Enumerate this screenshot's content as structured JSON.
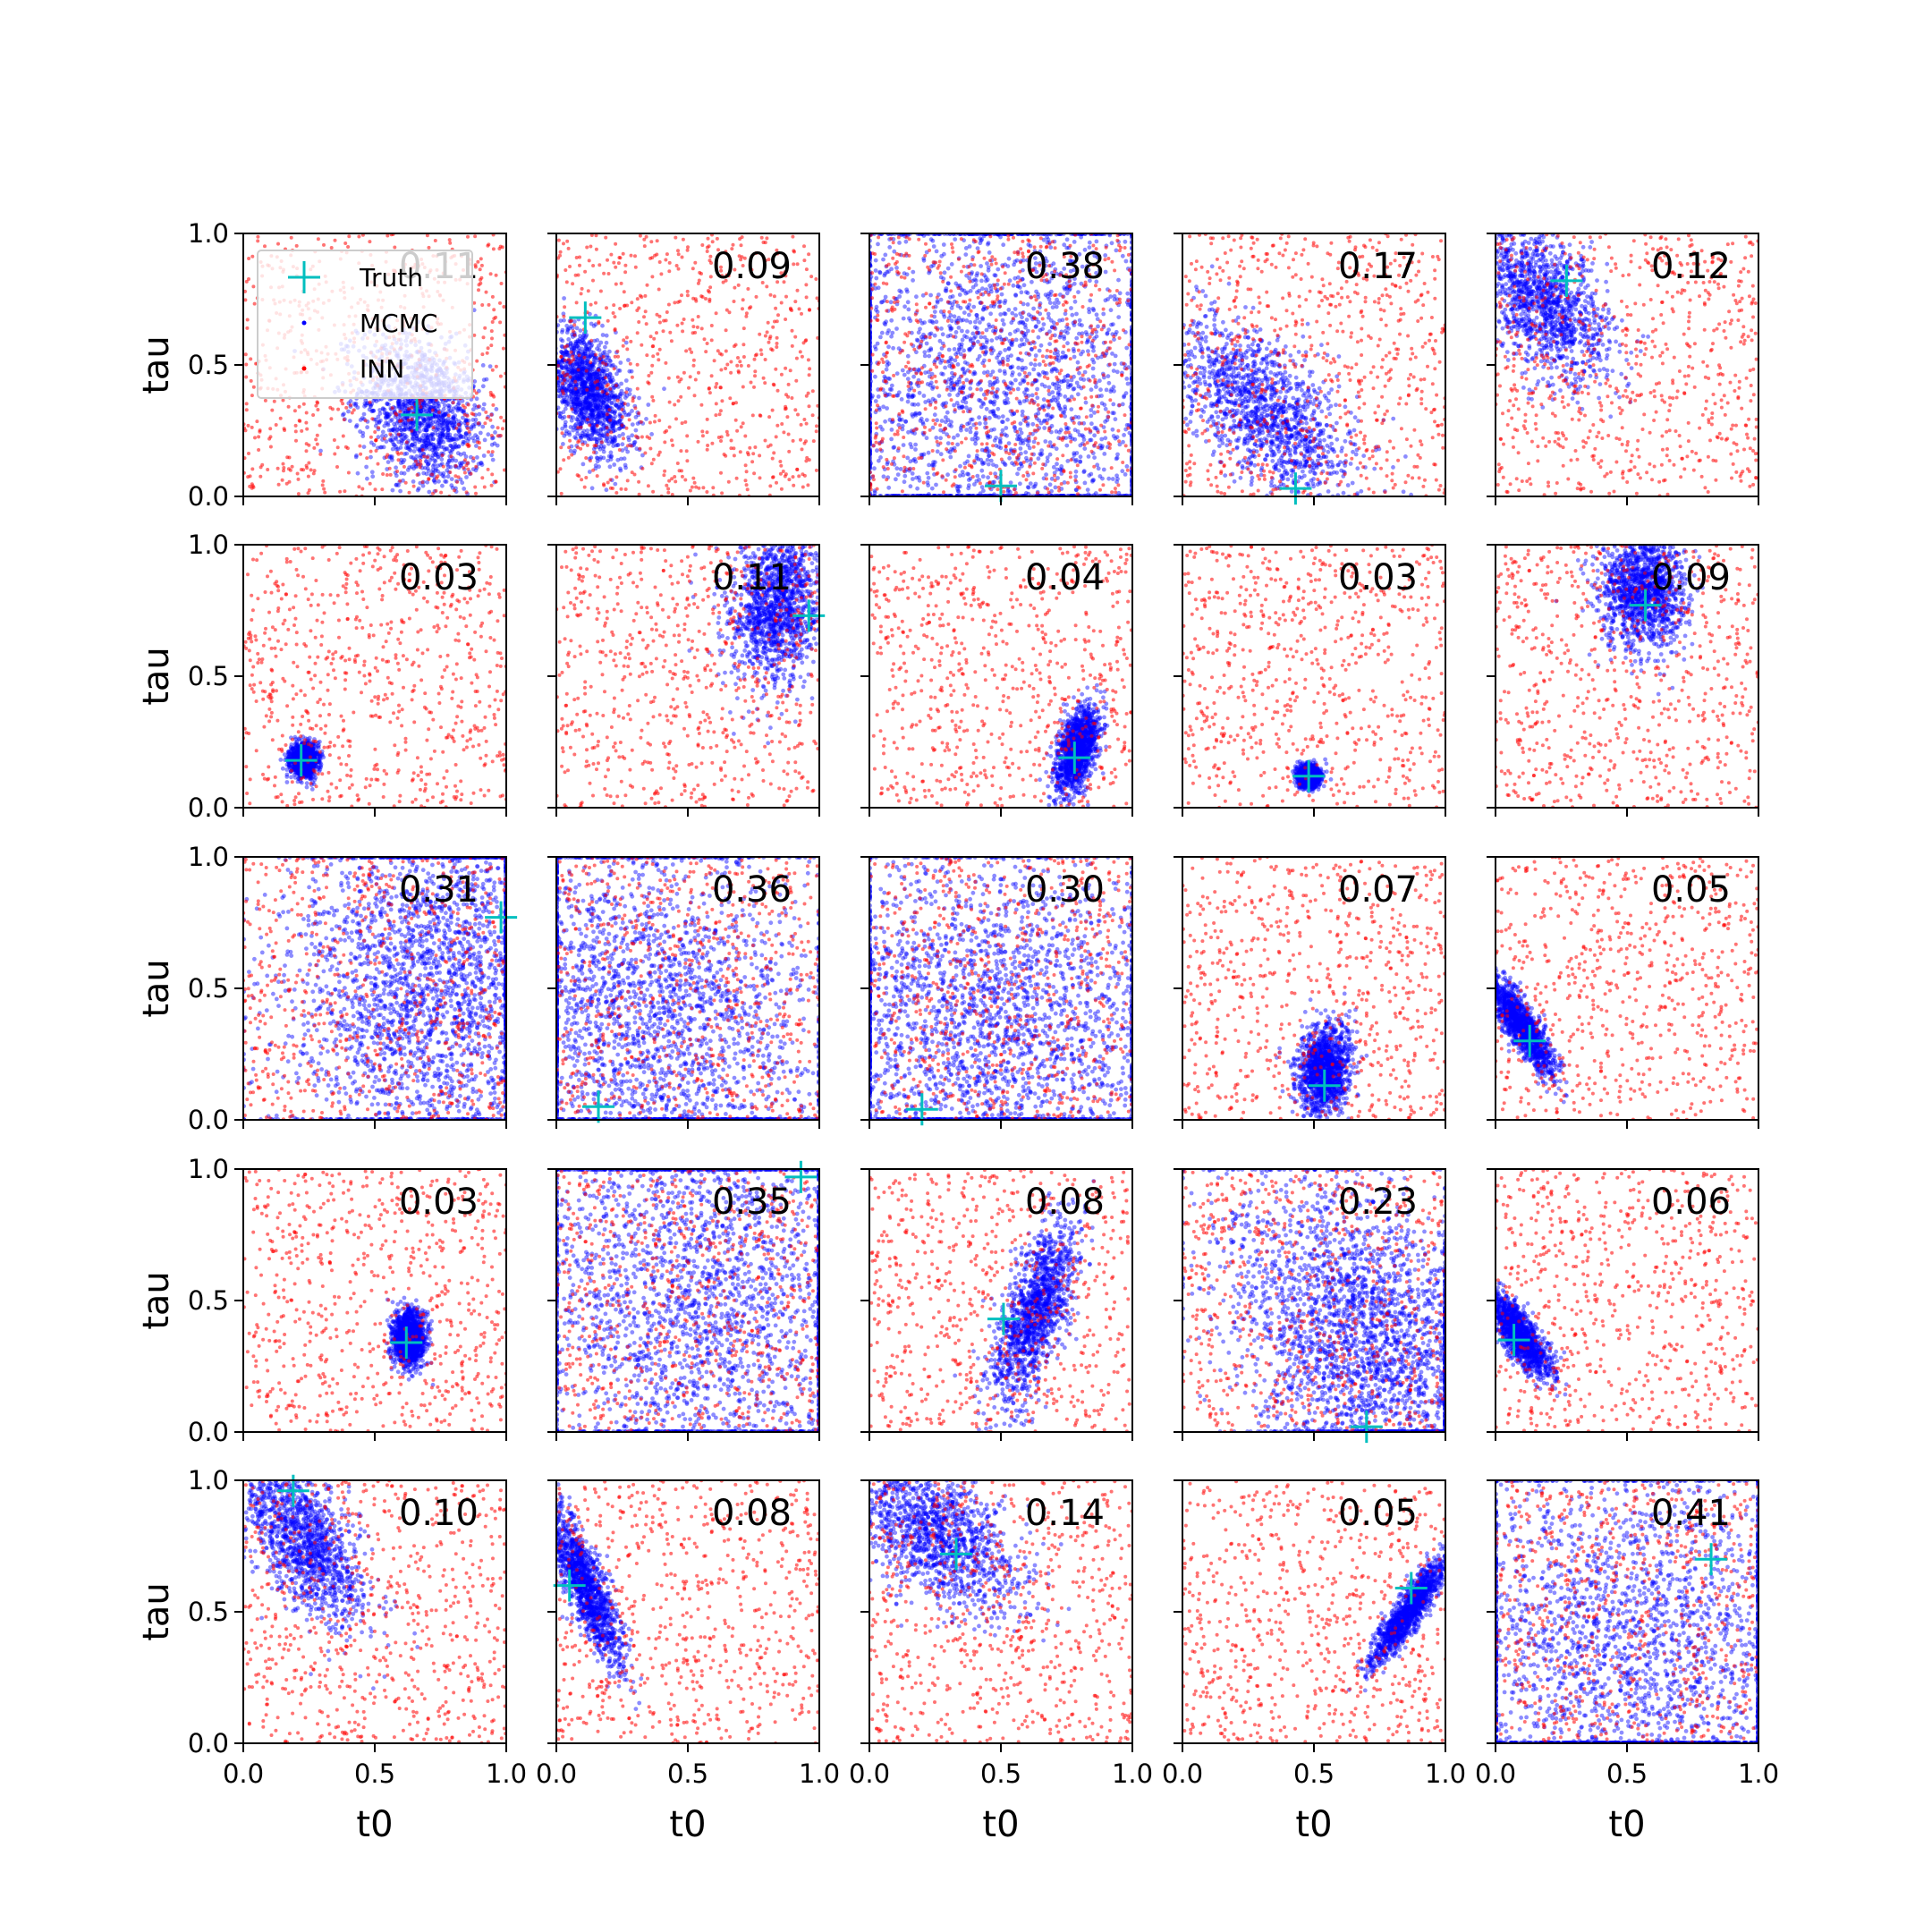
{
  "colors": {
    "mcmc": "#0000ff",
    "inn": "#ff0000",
    "truth": "#00bfbf",
    "axis": "#000000"
  },
  "legend": {
    "placement": "upper-left of first panel",
    "entries": [
      {
        "label": "Truth",
        "marker": "plus",
        "color": "#00bfbf"
      },
      {
        "label": "MCMC",
        "marker": "dot",
        "color": "#0000ff"
      },
      {
        "label": "INN",
        "marker": "dot",
        "color": "#ff0000"
      }
    ]
  },
  "chart_data": {
    "type": "scatter",
    "grid": {
      "rows": 5,
      "cols": 5
    },
    "xlabel": "t0",
    "ylabel": "tau",
    "xlim": [
      0,
      1
    ],
    "ylim": [
      0,
      1
    ],
    "xticks": [
      "0.0",
      "0.5",
      "1.0"
    ],
    "yticks": [
      "0.0",
      "0.5",
      "1.0"
    ],
    "grid_lines": false,
    "series_note": "INN samples are roughly uniform over the unit square in every panel; MCMC samples form the blob described per panel.",
    "panels": [
      {
        "score": "0.11",
        "truth": [
          0.66,
          0.31
        ],
        "mcmc": {
          "cx": 0.68,
          "cy": 0.32,
          "sx": 0.12,
          "sy": 0.14,
          "rho": -0.3
        }
      },
      {
        "score": "0.09",
        "truth": [
          0.11,
          0.68
        ],
        "mcmc": {
          "cx": 0.12,
          "cy": 0.4,
          "sx": 0.08,
          "sy": 0.12,
          "rho": -0.5
        }
      },
      {
        "score": "0.38",
        "truth": [
          0.5,
          0.04
        ],
        "mcmc": {
          "cx": 0.5,
          "cy": 0.45,
          "sx": 0.4,
          "sy": 0.4,
          "rho": 0.0
        }
      },
      {
        "score": "0.17",
        "truth": [
          0.43,
          0.03
        ],
        "mcmc": {
          "cx": 0.32,
          "cy": 0.32,
          "sx": 0.17,
          "sy": 0.17,
          "rho": -0.6
        }
      },
      {
        "score": "0.12",
        "truth": [
          0.27,
          0.82
        ],
        "mcmc": {
          "cx": 0.18,
          "cy": 0.74,
          "sx": 0.13,
          "sy": 0.15,
          "rho": -0.5
        }
      },
      {
        "score": "0.03",
        "truth": [
          0.22,
          0.18
        ],
        "mcmc": {
          "cx": 0.23,
          "cy": 0.18,
          "sx": 0.025,
          "sy": 0.03,
          "rho": 0.0
        }
      },
      {
        "score": "0.11",
        "truth": [
          0.96,
          0.73
        ],
        "mcmc": {
          "cx": 0.84,
          "cy": 0.76,
          "sx": 0.09,
          "sy": 0.15,
          "rho": 0.2
        }
      },
      {
        "score": "0.04",
        "truth": [
          0.78,
          0.19
        ],
        "mcmc": {
          "cx": 0.79,
          "cy": 0.22,
          "sx": 0.04,
          "sy": 0.08,
          "rho": 0.5
        }
      },
      {
        "score": "0.03",
        "truth": [
          0.48,
          0.12
        ],
        "mcmc": {
          "cx": 0.48,
          "cy": 0.12,
          "sx": 0.02,
          "sy": 0.02,
          "rho": 0.0
        }
      },
      {
        "score": "0.09",
        "truth": [
          0.57,
          0.77
        ],
        "mcmc": {
          "cx": 0.56,
          "cy": 0.82,
          "sx": 0.08,
          "sy": 0.11,
          "rho": 0.0
        }
      },
      {
        "score": "0.31",
        "truth": [
          0.98,
          0.77
        ],
        "mcmc": {
          "cx": 0.72,
          "cy": 0.55,
          "sx": 0.28,
          "sy": 0.35,
          "rho": 0.1
        }
      },
      {
        "score": "0.36",
        "truth": [
          0.16,
          0.05
        ],
        "mcmc": {
          "cx": 0.35,
          "cy": 0.4,
          "sx": 0.35,
          "sy": 0.38,
          "rho": -0.2
        }
      },
      {
        "score": "0.30",
        "truth": [
          0.2,
          0.04
        ],
        "mcmc": {
          "cx": 0.45,
          "cy": 0.35,
          "sx": 0.38,
          "sy": 0.35,
          "rho": 0.0
        }
      },
      {
        "score": "0.07",
        "truth": [
          0.54,
          0.13
        ],
        "mcmc": {
          "cx": 0.54,
          "cy": 0.19,
          "sx": 0.05,
          "sy": 0.08,
          "rho": 0.1
        }
      },
      {
        "score": "0.05",
        "truth": [
          0.13,
          0.3
        ],
        "mcmc": {
          "cx": 0.1,
          "cy": 0.36,
          "sx": 0.06,
          "sy": 0.09,
          "rho": -0.85
        }
      },
      {
        "score": "0.03",
        "truth": [
          0.62,
          0.34
        ],
        "mcmc": {
          "cx": 0.63,
          "cy": 0.36,
          "sx": 0.03,
          "sy": 0.05,
          "rho": 0.0
        }
      },
      {
        "score": "0.35",
        "truth": [
          0.93,
          0.97
        ],
        "mcmc": {
          "cx": 0.55,
          "cy": 0.5,
          "sx": 0.38,
          "sy": 0.4,
          "rho": 0.0
        }
      },
      {
        "score": "0.08",
        "truth": [
          0.51,
          0.43
        ],
        "mcmc": {
          "cx": 0.63,
          "cy": 0.45,
          "sx": 0.08,
          "sy": 0.17,
          "rho": 0.65
        }
      },
      {
        "score": "0.23",
        "truth": [
          0.7,
          0.02
        ],
        "mcmc": {
          "cx": 0.68,
          "cy": 0.35,
          "sx": 0.25,
          "sy": 0.3,
          "rho": -0.3
        }
      },
      {
        "score": "0.06",
        "truth": [
          0.07,
          0.35
        ],
        "mcmc": {
          "cx": 0.09,
          "cy": 0.37,
          "sx": 0.06,
          "sy": 0.08,
          "rho": -0.8
        }
      },
      {
        "score": "0.10",
        "truth": [
          0.19,
          0.96
        ],
        "mcmc": {
          "cx": 0.22,
          "cy": 0.78,
          "sx": 0.12,
          "sy": 0.16,
          "rho": -0.6
        }
      },
      {
        "score": "0.08",
        "truth": [
          0.05,
          0.6
        ],
        "mcmc": {
          "cx": 0.11,
          "cy": 0.6,
          "sx": 0.07,
          "sy": 0.15,
          "rho": -0.85
        }
      },
      {
        "score": "0.14",
        "truth": [
          0.33,
          0.72
        ],
        "mcmc": {
          "cx": 0.25,
          "cy": 0.8,
          "sx": 0.16,
          "sy": 0.15,
          "rho": -0.5
        }
      },
      {
        "score": "0.05",
        "truth": [
          0.87,
          0.59
        ],
        "mcmc": {
          "cx": 0.86,
          "cy": 0.5,
          "sx": 0.07,
          "sy": 0.1,
          "rho": 0.9
        }
      },
      {
        "score": "0.41",
        "truth": [
          0.82,
          0.7
        ],
        "mcmc": {
          "cx": 0.5,
          "cy": 0.35,
          "sx": 0.42,
          "sy": 0.4,
          "rho": 0.0
        }
      }
    ]
  }
}
